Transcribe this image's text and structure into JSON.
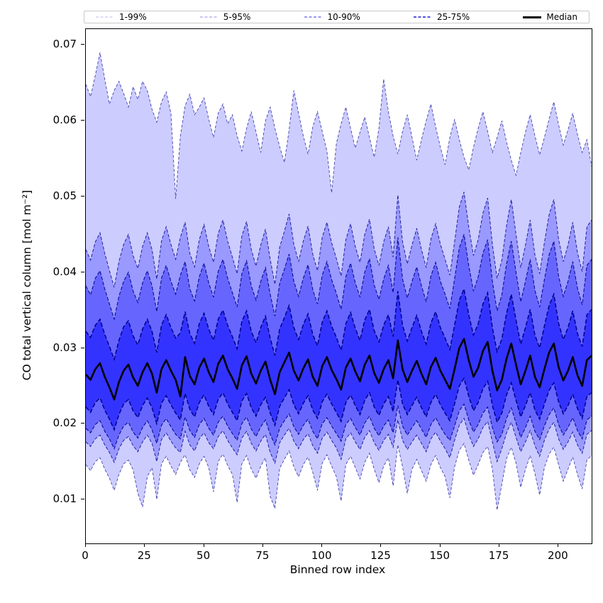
{
  "axes": {
    "x_label": "Binned row index",
    "y_label": "CO total vertical column [mol m⁻²]"
  },
  "chart_data": {
    "type": "area",
    "title": "",
    "xlabel": "Binned row index",
    "ylabel": "CO total vertical column [mol m⁻²]",
    "xlim": [
      0,
      214
    ],
    "ylim": [
      0.0042,
      0.0721
    ],
    "x_ticks": [
      0,
      25,
      50,
      75,
      100,
      125,
      150,
      175,
      200
    ],
    "y_ticks": [
      0.01,
      0.02,
      0.03,
      0.04,
      0.05,
      0.06,
      0.07
    ],
    "grid": false,
    "legend_position": "top",
    "edge_color": "#00008b",
    "background": "#ffffff",
    "x_start": 0,
    "x_step": 2,
    "value_scale": 0.0001,
    "bands": [
      {
        "label": "1-99%",
        "lower": "p01",
        "upper": "p99",
        "fill": "#ccccff",
        "edge_width": 0.9,
        "edge_opacity": 0.7,
        "dash": "4 2.5",
        "legend_color": "#c8c8f4",
        "legend_width": 1.2
      },
      {
        "label": "5-95%",
        "lower": "p05",
        "upper": "p95",
        "fill": "#9999ff",
        "edge_width": 1.0,
        "edge_opacity": 0.82,
        "dash": "4.5 2.5",
        "legend_color": "#a3a3ee",
        "legend_width": 1.3
      },
      {
        "label": "10-90%",
        "lower": "p10",
        "upper": "p90",
        "fill": "#6666ff",
        "edge_width": 1.1,
        "edge_opacity": 0.92,
        "dash": "5 2.5",
        "legend_color": "#7a7ae8",
        "legend_width": 1.6
      },
      {
        "label": "25-75%",
        "lower": "p25",
        "upper": "p75",
        "fill": "#3333ff",
        "edge_width": 1.5,
        "edge_opacity": 1.0,
        "dash": "6 3",
        "legend_color": "#5c5ce4",
        "legend_width": 2.2
      }
    ],
    "median": {
      "label": "Median",
      "color": "#000000",
      "width": 2.6
    },
    "series": {
      "median": [
        265,
        258,
        272,
        280,
        262,
        248,
        232,
        255,
        270,
        278,
        261,
        250,
        268,
        280,
        266,
        241,
        272,
        284,
        270,
        258,
        236,
        288,
        263,
        252,
        274,
        286,
        268,
        255,
        279,
        290,
        272,
        260,
        246,
        277,
        289,
        266,
        253,
        270,
        282,
        258,
        239,
        268,
        281,
        294,
        270,
        257,
        273,
        285,
        262,
        250,
        276,
        288,
        271,
        259,
        245,
        274,
        286,
        269,
        256,
        278,
        290,
        267,
        254,
        272,
        284,
        260,
        310,
        272,
        255,
        270,
        283,
        266,
        252,
        275,
        287,
        270,
        258,
        246,
        272,
        300,
        312,
        284,
        262,
        274,
        296,
        308,
        270,
        244,
        258,
        286,
        306,
        278,
        252,
        270,
        290,
        262,
        248,
        272,
        294,
        306,
        275,
        257,
        270,
        288,
        264,
        250,
        284,
        290
      ],
      "p25": [
        222,
        215,
        228,
        234,
        218,
        206,
        192,
        212,
        226,
        232,
        217,
        208,
        224,
        234,
        221,
        200,
        227,
        237,
        225,
        214,
        205,
        240,
        219,
        209,
        228,
        238,
        223,
        212,
        232,
        241,
        226,
        215,
        204,
        230,
        240,
        221,
        210,
        225,
        235,
        214,
        198,
        223,
        234,
        245,
        225,
        213,
        227,
        237,
        218,
        207,
        229,
        239,
        226,
        215,
        203,
        228,
        238,
        224,
        212,
        231,
        241,
        222,
        211,
        226,
        236,
        216,
        258,
        226,
        212,
        224,
        235,
        221,
        209,
        228,
        239,
        225,
        214,
        204,
        226,
        250,
        260,
        236,
        217,
        228,
        246,
        256,
        224,
        202,
        214,
        238,
        254,
        231,
        209,
        224,
        241,
        218,
        206,
        226,
        244,
        254,
        229,
        213,
        224,
        239,
        220,
        207,
        236,
        241
      ],
      "p75": [
        322,
        314,
        330,
        338,
        318,
        302,
        285,
        310,
        328,
        336,
        316,
        304,
        325,
        338,
        322,
        294,
        330,
        344,
        327,
        313,
        320,
        348,
        319,
        306,
        332,
        346,
        325,
        310,
        338,
        350,
        330,
        315,
        299,
        335,
        349,
        322,
        307,
        327,
        342,
        313,
        290,
        325,
        340,
        356,
        327,
        311,
        331,
        345,
        318,
        303,
        334,
        349,
        329,
        314,
        297,
        332,
        347,
        326,
        310,
        337,
        351,
        323,
        308,
        330,
        344,
        315,
        375,
        330,
        309,
        327,
        343,
        322,
        305,
        333,
        348,
        327,
        313,
        298,
        330,
        363,
        378,
        344,
        317,
        332,
        358,
        373,
        327,
        295,
        312,
        346,
        371,
        337,
        305,
        327,
        351,
        317,
        300,
        329,
        356,
        371,
        333,
        311,
        327,
        349,
        319,
        302,
        344,
        351
      ],
      "p10": [
        194,
        188,
        199,
        204,
        190,
        180,
        167,
        185,
        197,
        202,
        189,
        181,
        195,
        204,
        192,
        174,
        198,
        207,
        196,
        186,
        180,
        209,
        191,
        182,
        199,
        207,
        194,
        185,
        202,
        210,
        197,
        187,
        178,
        200,
        209,
        193,
        183,
        196,
        205,
        186,
        172,
        194,
        204,
        213,
        196,
        186,
        198,
        206,
        190,
        180,
        200,
        208,
        197,
        187,
        177,
        199,
        207,
        195,
        185,
        201,
        210,
        194,
        184,
        197,
        205,
        188,
        224,
        197,
        185,
        195,
        204,
        193,
        182,
        199,
        208,
        196,
        186,
        178,
        197,
        217,
        226,
        205,
        189,
        199,
        214,
        222,
        195,
        176,
        186,
        207,
        221,
        201,
        182,
        195,
        210,
        190,
        179,
        197,
        212,
        221,
        199,
        185,
        195,
        208,
        191,
        180,
        205,
        210
      ],
      "p90": [
        382,
        370,
        392,
        402,
        378,
        358,
        338,
        368,
        388,
        400,
        375,
        360,
        386,
        402,
        382,
        348,
        392,
        409,
        388,
        371,
        396,
        414,
        378,
        362,
        394,
        412,
        386,
        367,
        401,
        417,
        392,
        373,
        354,
        398,
        415,
        382,
        363,
        388,
        406,
        371,
        342,
        385,
        404,
        424,
        388,
        368,
        392,
        410,
        377,
        358,
        396,
        414,
        390,
        372,
        351,
        394,
        412,
        386,
        367,
        400,
        418,
        383,
        364,
        391,
        409,
        373,
        446,
        391,
        366,
        388,
        407,
        382,
        361,
        395,
        413,
        388,
        371,
        352,
        391,
        432,
        450,
        409,
        375,
        394,
        425,
        443,
        388,
        349,
        370,
        411,
        441,
        400,
        361,
        388,
        417,
        376,
        354,
        390,
        423,
        441,
        395,
        368,
        388,
        414,
        379,
        357,
        409,
        417
      ],
      "p05": [
        176,
        170,
        180,
        185,
        172,
        162,
        149,
        167,
        178,
        183,
        171,
        163,
        176,
        185,
        174,
        150,
        179,
        188,
        177,
        168,
        162,
        190,
        172,
        164,
        180,
        188,
        175,
        167,
        183,
        191,
        178,
        168,
        159,
        181,
        190,
        174,
        164,
        177,
        186,
        162,
        148,
        175,
        185,
        194,
        177,
        167,
        179,
        187,
        171,
        161,
        181,
        189,
        178,
        168,
        153,
        180,
        188,
        176,
        166,
        182,
        191,
        175,
        165,
        178,
        186,
        169,
        205,
        178,
        166,
        176,
        185,
        174,
        163,
        180,
        189,
        177,
        167,
        155,
        178,
        198,
        207,
        186,
        170,
        180,
        195,
        203,
        176,
        150,
        167,
        188,
        202,
        182,
        163,
        176,
        191,
        171,
        157,
        178,
        193,
        202,
        180,
        166,
        176,
        189,
        172,
        161,
        186,
        191
      ],
      "p95": [
        430,
        416,
        440,
        452,
        425,
        402,
        380,
        414,
        437,
        450,
        422,
        405,
        434,
        452,
        430,
        391,
        441,
        460,
        437,
        417,
        446,
        466,
        425,
        407,
        443,
        463,
        434,
        413,
        451,
        469,
        441,
        420,
        398,
        448,
        467,
        430,
        408,
        436,
        457,
        417,
        384,
        433,
        454,
        477,
        437,
        414,
        441,
        461,
        424,
        402,
        446,
        466,
        439,
        418,
        395,
        443,
        464,
        434,
        413,
        450,
        470,
        431,
        409,
        440,
        460,
        420,
        502,
        440,
        411,
        436,
        458,
        430,
        406,
        444,
        464,
        437,
        417,
        396,
        440,
        486,
        506,
        460,
        422,
        443,
        478,
        498,
        437,
        392,
        416,
        462,
        496,
        450,
        406,
        436,
        469,
        423,
        398,
        439,
        476,
        496,
        444,
        414,
        436,
        466,
        426,
        401,
        460,
        469
      ],
      "p01": [
        146,
        138,
        150,
        155,
        140,
        128,
        112,
        133,
        147,
        152,
        139,
        108,
        90,
        130,
        142,
        100,
        147,
        157,
        144,
        133,
        149,
        159,
        139,
        129,
        147,
        157,
        142,
        110,
        150,
        160,
        145,
        133,
        96,
        147,
        158,
        140,
        128,
        144,
        155,
        104,
        88,
        141,
        153,
        164,
        143,
        130,
        146,
        156,
        136,
        112,
        148,
        159,
        144,
        130,
        98,
        146,
        157,
        142,
        127,
        149,
        161,
        140,
        122,
        144,
        155,
        118,
        172,
        143,
        108,
        140,
        153,
        138,
        124,
        146,
        158,
        142,
        130,
        102,
        143,
        165,
        174,
        152,
        132,
        146,
        162,
        170,
        140,
        86,
        120,
        154,
        169,
        148,
        116,
        140,
        158,
        134,
        106,
        142,
        160,
        169,
        146,
        124,
        140,
        156,
        133,
        114,
        152,
        158
      ],
      "p99": [
        648,
        632,
        660,
        690,
        655,
        622,
        640,
        652,
        636,
        618,
        645,
        628,
        652,
        640,
        615,
        598,
        625,
        638,
        610,
        497,
        580,
        620,
        635,
        608,
        618,
        630,
        602,
        578,
        610,
        622,
        596,
        608,
        580,
        560,
        590,
        612,
        585,
        558,
        600,
        618,
        590,
        566,
        545,
        588,
        640,
        610,
        580,
        556,
        592,
        612,
        586,
        560,
        505,
        570,
        596,
        618,
        590,
        564,
        585,
        605,
        578,
        552,
        590,
        655,
        612,
        580,
        556,
        586,
        608,
        578,
        548,
        575,
        600,
        622,
        592,
        565,
        542,
        578,
        602,
        575,
        552,
        535,
        565,
        590,
        612,
        586,
        558,
        578,
        600,
        572,
        548,
        528,
        558,
        585,
        608,
        580,
        555,
        578,
        602,
        625,
        595,
        568,
        588,
        610,
        582,
        558,
        575,
        540
      ]
    }
  }
}
